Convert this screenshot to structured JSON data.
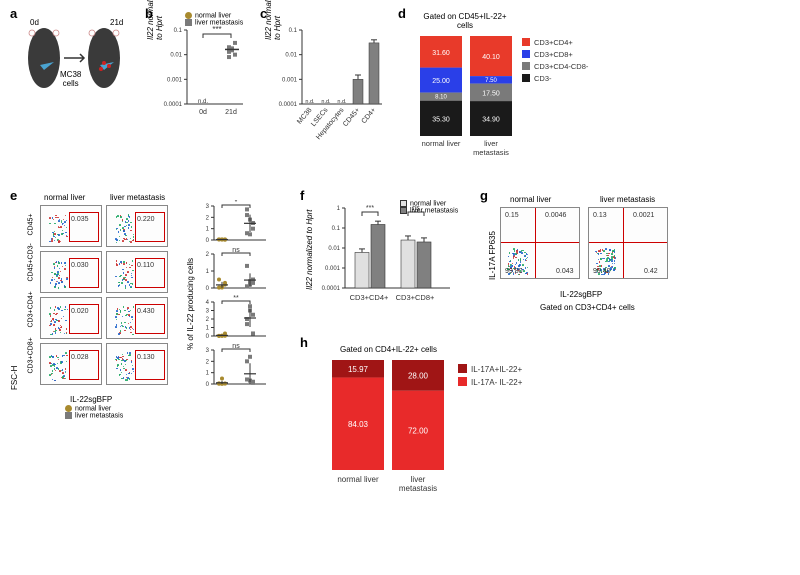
{
  "panel_a": {
    "label": "a",
    "day0": "0d",
    "day21": "21d",
    "cells": "MC38\ncells"
  },
  "panel_b": {
    "label": "b",
    "ylabel": "Il22 normalized\nto Hprt",
    "legend": {
      "normal": "normal liver",
      "met": "liver metastasis"
    },
    "colors": {
      "normal": "#a88a2e",
      "met": "#7a7a7a"
    },
    "sig": "***",
    "nd": "n.d.",
    "cats": [
      "0d",
      "21d"
    ],
    "ylim": [
      0.0001,
      0.1
    ],
    "points_met": [
      0.013,
      0.015,
      0.01,
      0.02,
      0.018,
      0.03,
      0.008
    ]
  },
  "panel_c": {
    "label": "c",
    "ylabel": "Il22 normalized\nto Hprt",
    "cats": [
      "MC38",
      "LSECs",
      "Hepatocytes",
      "CD45+",
      "CD4+"
    ],
    "nd_count": 3,
    "nd": "n.d.",
    "values": [
      null,
      null,
      null,
      0.001,
      0.03
    ],
    "err": [
      null,
      null,
      null,
      0.0005,
      0.01
    ],
    "ylim": [
      0.0001,
      0.1
    ],
    "bar_color": "#808080"
  },
  "panel_d": {
    "label": "d",
    "title": "Gated on CD45+IL-22+\ncells",
    "segments": [
      {
        "name": "CD3+CD4+",
        "color": "#e83a2a",
        "normal": 31.6,
        "met": 40.1
      },
      {
        "name": "CD3+CD8+",
        "color": "#2a3fe8",
        "normal": 25.0,
        "met": 7.5
      },
      {
        "name": "CD3+CD4-CD8-",
        "color": "#7a7a7a",
        "normal": 8.1,
        "met": 17.5
      },
      {
        "name": "CD3-",
        "color": "#1a1a1a",
        "normal": 35.3,
        "met": 34.9
      }
    ],
    "xlabels": [
      "normal liver",
      "liver\nmetastasis"
    ]
  },
  "panel_e": {
    "label": "e",
    "col_headers": [
      "normal liver",
      "liver metastasis"
    ],
    "row_labels": [
      "CD45+",
      "CD45+CD3-",
      "CD3+CD4+",
      "CD3+CD8+"
    ],
    "flow_nums": [
      [
        "0.035",
        "0.220"
      ],
      [
        "0.030",
        "0.110"
      ],
      [
        "0.020",
        "0.430"
      ],
      [
        "0.028",
        "0.130"
      ]
    ],
    "y_axis": "FSC-H",
    "x_axis": "IL-22sgBFP",
    "scatter_ylabel": "% of IL-22 producing cells",
    "scatter_rows": [
      {
        "sig": "*",
        "ymax": 3,
        "normal": [
          0.04,
          0.05,
          0.02,
          0.06,
          0.03,
          0.05
        ],
        "met": [
          0.6,
          1.8,
          1.5,
          2.7,
          0.5,
          1.0,
          2.2
        ]
      },
      {
        "sig": "ns",
        "ymax": 2,
        "normal": [
          0.02,
          0.04,
          0.2,
          0.5,
          0.03,
          0.3
        ],
        "met": [
          0.1,
          0.4,
          0.3,
          1.3,
          0.2,
          0.5
        ]
      },
      {
        "sig": "**",
        "ymax": 4,
        "normal": [
          0.02,
          0.01,
          0.03,
          0.02,
          0.04,
          0.3
        ],
        "met": [
          1.4,
          3.5,
          0.3,
          2.0,
          3.0,
          2.5
        ]
      },
      {
        "sig": "ns",
        "ymax": 3,
        "normal": [
          0.02,
          0.01,
          0.03,
          0.05,
          0.48,
          0.04
        ],
        "met": [
          0.4,
          2.4,
          0.1,
          2.0,
          0.3,
          0.2
        ]
      }
    ],
    "legend": {
      "normal": "normal liver",
      "met": "liver metastasis"
    },
    "colors": {
      "normal": "#a88a2e",
      "met": "#7a7a7a"
    }
  },
  "panel_f": {
    "label": "f",
    "ylabel": "Il22 normalized to Hprt",
    "cats": [
      "CD3+CD4+",
      "CD3+CD8+"
    ],
    "legend": {
      "normal": "normal liver",
      "met": "liver metastasis"
    },
    "colors": {
      "normal": "#e0e0e0",
      "met": "#808080"
    },
    "ylim": [
      0.0001,
      1
    ],
    "values": {
      "normal": [
        0.006,
        0.025
      ],
      "met": [
        0.15,
        0.02
      ]
    },
    "err": {
      "normal": [
        0.003,
        0.015
      ],
      "met": [
        0.07,
        0.012
      ]
    },
    "sig": [
      "***",
      "ns"
    ]
  },
  "panel_g": {
    "label": "g",
    "col_headers": [
      "normal liver",
      "liver metastasis"
    ],
    "y_axis": "IL-17A FP635",
    "x_axis": "IL-22sgBFP",
    "gated": "Gated on CD3+CD4+ cells",
    "quad": [
      {
        "ul": "0.15",
        "ur": "0.0046",
        "ll": "99.80",
        "lr": "0.043"
      },
      {
        "ul": "0.13",
        "ur": "0.0021",
        "ll": "99.40",
        "lr": "0.42"
      }
    ]
  },
  "panel_h": {
    "label": "h",
    "title": "Gated on CD4+IL-22+ cells",
    "segments": [
      {
        "name": "IL-17A+IL-22+",
        "color": "#a01515",
        "normal": 15.97,
        "met": 28.0
      },
      {
        "name": "IL-17A- IL-22+",
        "color": "#e82a2a",
        "normal": 84.03,
        "met": 72.0
      }
    ],
    "xlabels": [
      "normal liver",
      "liver\nmetastasis"
    ]
  }
}
